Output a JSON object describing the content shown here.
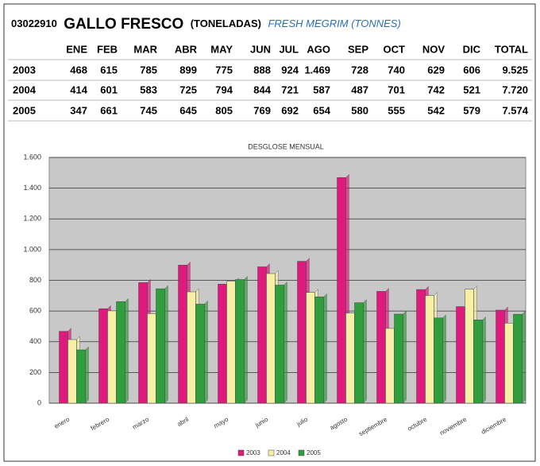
{
  "header": {
    "code": "03022910",
    "title": "GALLO FRESCO",
    "unit": "(TONELADAS)",
    "subtitle": "FRESH MEGRIM (TONNES)"
  },
  "table": {
    "header": [
      "ENE",
      "FEB",
      "MAR",
      "ABR",
      "MAY",
      "JUN",
      "JUL",
      "AGO",
      "SEP",
      "OCT",
      "NOV",
      "DIC",
      "TOTAL"
    ],
    "rows": [
      [
        "2003",
        "468",
        "615",
        "785",
        "899",
        "775",
        "888",
        "924",
        "1.469",
        "728",
        "740",
        "629",
        "606",
        "9.525"
      ],
      [
        "2004",
        "414",
        "601",
        "583",
        "725",
        "794",
        "844",
        "721",
        "587",
        "487",
        "701",
        "742",
        "521",
        "7.720"
      ],
      [
        "2005",
        "347",
        "661",
        "745",
        "645",
        "805",
        "769",
        "692",
        "654",
        "580",
        "555",
        "542",
        "579",
        "7.574"
      ]
    ]
  },
  "chart_data": {
    "type": "bar",
    "title": "DESGLOSE MENSUAL",
    "categories": [
      "enero",
      "febrero",
      "marzo",
      "abril",
      "mayo",
      "junio",
      "julio",
      "agosto",
      "septiembre",
      "octubre",
      "noviembre",
      "diciembre"
    ],
    "series": [
      {
        "name": "2003",
        "color": "#e0197d",
        "values": [
          468,
          615,
          785,
          899,
          775,
          888,
          924,
          1469,
          728,
          740,
          629,
          606
        ]
      },
      {
        "name": "2004",
        "color": "#f6f0a6",
        "values": [
          414,
          601,
          583,
          725,
          794,
          844,
          721,
          587,
          487,
          701,
          742,
          521
        ]
      },
      {
        "name": "2005",
        "color": "#2f9e3c",
        "values": [
          347,
          661,
          745,
          645,
          805,
          769,
          692,
          654,
          580,
          555,
          542,
          579
        ]
      }
    ],
    "ylim": [
      0,
      1600
    ],
    "yticks": [
      0,
      200,
      400,
      600,
      800,
      {
        "value": 1000,
        "label": "1.000"
      },
      {
        "value": 1200,
        "label": "1.200"
      },
      {
        "value": 1400,
        "label": "1.400"
      },
      {
        "value": 1600,
        "label": "1.600"
      }
    ],
    "grid": true,
    "legend": "bottom"
  }
}
